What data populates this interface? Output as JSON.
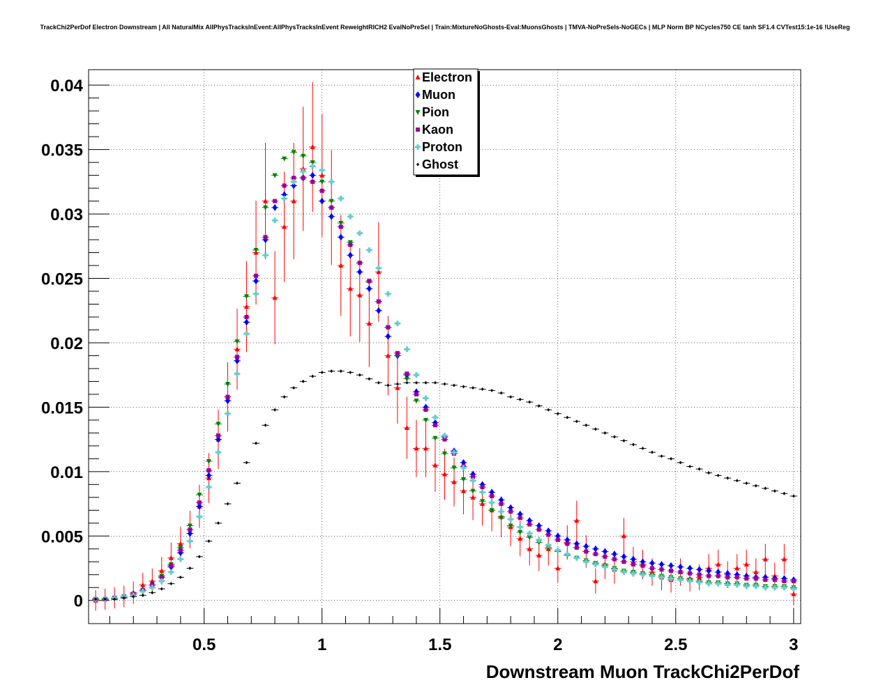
{
  "chart_data": {
    "type": "scatter",
    "title": "TrackChi2PerDof Electron Downstream | All NaturalMix AllPhysTracksInEvent:AllPhysTracksInEvent ReweightRICH2 EvalNoPreSel | Train:MixtureNoGhosts-Eval:MuonsGhosts | TMVA-NoPreSels-NoGECs | MLP Norm BP NCycles750 CE tanh SF1.4 CVTest15:1e-16 !UseReg",
    "xlabel": "Downstream Muon TrackChi2PerDof",
    "ylabel": "",
    "xlim": [
      0.01,
      3.03
    ],
    "ylim": [
      -0.0018,
      0.0412
    ],
    "grid": true,
    "legend_position": "top-center",
    "x_ticks": [
      "0.5",
      "1",
      "1.5",
      "2",
      "2.5",
      "3"
    ],
    "y_ticks": [
      "0",
      "0.005",
      "0.01",
      "0.015",
      "0.02",
      "0.025",
      "0.03",
      "0.035",
      "0.04"
    ],
    "x": [
      0.04,
      0.08,
      0.12,
      0.16,
      0.2,
      0.24,
      0.28,
      0.32,
      0.36,
      0.4,
      0.44,
      0.48,
      0.52,
      0.56,
      0.6,
      0.64,
      0.68,
      0.72,
      0.76,
      0.8,
      0.84,
      0.88,
      0.92,
      0.96,
      1.0,
      1.04,
      1.08,
      1.12,
      1.16,
      1.2,
      1.24,
      1.28,
      1.32,
      1.36,
      1.4,
      1.44,
      1.48,
      1.52,
      1.56,
      1.6,
      1.64,
      1.68,
      1.72,
      1.76,
      1.8,
      1.84,
      1.88,
      1.92,
      1.96,
      2.0,
      2.04,
      2.08,
      2.12,
      2.16,
      2.2,
      2.24,
      2.28,
      2.32,
      2.36,
      2.4,
      2.44,
      2.48,
      2.52,
      2.56,
      2.6,
      2.64,
      2.68,
      2.72,
      2.76,
      2.8,
      2.84,
      2.88,
      2.92,
      2.96,
      3.0
    ],
    "series": [
      {
        "name": "Electron",
        "marker": "triangle-up",
        "color": "#ff0000",
        "values": [
          0,
          0.0001,
          0.0002,
          0.0003,
          0.0006,
          0.0012,
          0.0015,
          0.0023,
          0.0033,
          0.0044,
          0.0055,
          0.0073,
          0.0095,
          0.0125,
          0.0158,
          0.0195,
          0.0228,
          0.027,
          0.031,
          0.0235,
          0.029,
          0.031,
          0.0335,
          0.0352,
          0.033,
          0.0305,
          0.026,
          0.0242,
          0.0237,
          0.0215,
          0.0255,
          0.019,
          0.0165,
          0.0134,
          0.0118,
          0.0118,
          0.0105,
          0.0098,
          0.0092,
          0.0085,
          0.008,
          0.0075,
          0.007,
          0.0065,
          0.0057,
          0.0048,
          0.004,
          0.0035,
          0.004,
          0.0025,
          0.0045,
          0.0062,
          0.0038,
          0.0015,
          0.0028,
          0.0024,
          0.005,
          0.003,
          0.0028,
          0.0022,
          0.0018,
          0.0016,
          0.0022,
          0.0017,
          0.0018,
          0.0025,
          0.0028,
          0.002,
          0.0025,
          0.0028,
          0.0022,
          0.0032,
          0.0019,
          0.0032,
          0.0005
        ]
      },
      {
        "name": "Muon",
        "marker": "diamond",
        "color": "#0000ff",
        "values": [
          0.0001,
          0.0001,
          0.0002,
          0.0003,
          0.0005,
          0.0008,
          0.0012,
          0.0018,
          0.0026,
          0.0037,
          0.0052,
          0.0073,
          0.0097,
          0.0125,
          0.0155,
          0.0186,
          0.0216,
          0.0248,
          0.028,
          0.0305,
          0.0315,
          0.0322,
          0.0328,
          0.033,
          0.031,
          0.0298,
          0.0282,
          0.0268,
          0.0255,
          0.0242,
          0.0225,
          0.0205,
          0.019,
          0.0175,
          0.0162,
          0.015,
          0.0138,
          0.0127,
          0.0116,
          0.0107,
          0.0098,
          0.009,
          0.0084,
          0.0078,
          0.0072,
          0.0067,
          0.0062,
          0.0058,
          0.0054,
          0.005,
          0.0047,
          0.0044,
          0.0042,
          0.004,
          0.0038,
          0.0036,
          0.0034,
          0.0032,
          0.003,
          0.0029,
          0.0028,
          0.0027,
          0.0026,
          0.0025,
          0.0024,
          0.0023,
          0.0022,
          0.0021,
          0.002,
          0.0019,
          0.0018,
          0.0018,
          0.0017,
          0.0017,
          0.0016
        ]
      },
      {
        "name": "Pion",
        "marker": "triangle-down",
        "color": "#008000",
        "values": [
          0.0001,
          0.0001,
          0.0002,
          0.0003,
          0.0005,
          0.0008,
          0.0012,
          0.0019,
          0.0028,
          0.0041,
          0.0058,
          0.0082,
          0.0108,
          0.0137,
          0.0168,
          0.0201,
          0.0236,
          0.0272,
          0.0305,
          0.033,
          0.0343,
          0.0348,
          0.0345,
          0.034,
          0.0325,
          0.031,
          0.0293,
          0.0278,
          0.0262,
          0.0247,
          0.0232,
          0.0212,
          0.019,
          0.0172,
          0.0155,
          0.014,
          0.0126,
          0.0114,
          0.0103,
          0.0094,
          0.0085,
          0.0077,
          0.007,
          0.0064,
          0.0058,
          0.0053,
          0.0049,
          0.0045,
          0.0041,
          0.0038,
          0.0035,
          0.0033,
          0.0031,
          0.0029,
          0.0027,
          0.0025,
          0.0023,
          0.0022,
          0.0021,
          0.002,
          0.0019,
          0.0018,
          0.0017,
          0.0016,
          0.0015,
          0.0014,
          0.0014,
          0.0013,
          0.0013,
          0.0012,
          0.0012,
          0.0011,
          0.0011,
          0.0011,
          0.001
        ]
      },
      {
        "name": "Kaon",
        "marker": "square",
        "color": "#990099",
        "values": [
          0.0001,
          0.0001,
          0.0002,
          0.0003,
          0.0005,
          0.0008,
          0.0012,
          0.0018,
          0.0027,
          0.0039,
          0.0055,
          0.0076,
          0.0101,
          0.0128,
          0.0158,
          0.0189,
          0.022,
          0.0252,
          0.0282,
          0.031,
          0.0322,
          0.0328,
          0.0328,
          0.0325,
          0.0318,
          0.0305,
          0.029,
          0.0276,
          0.0262,
          0.0248,
          0.0232,
          0.0212,
          0.0192,
          0.0176,
          0.016,
          0.0148,
          0.0136,
          0.0125,
          0.0114,
          0.0104,
          0.0096,
          0.0088,
          0.0081,
          0.0075,
          0.0069,
          0.0064,
          0.0059,
          0.0055,
          0.0051,
          0.0047,
          0.0044,
          0.0041,
          0.0038,
          0.0036,
          0.0034,
          0.0032,
          0.003,
          0.0028,
          0.0027,
          0.0025,
          0.0024,
          0.0023,
          0.0022,
          0.0021,
          0.002,
          0.0019,
          0.0019,
          0.0018,
          0.0018,
          0.0017,
          0.0017,
          0.0016,
          0.0016,
          0.0015,
          0.0015
        ]
      },
      {
        "name": "Proton",
        "marker": "cross",
        "color": "#66cccc",
        "values": [
          0.0001,
          0.0001,
          0.0002,
          0.0003,
          0.0004,
          0.0007,
          0.001,
          0.0015,
          0.0022,
          0.0032,
          0.0046,
          0.0065,
          0.0088,
          0.0115,
          0.0145,
          0.0176,
          0.0207,
          0.0238,
          0.0268,
          0.0295,
          0.0312,
          0.0325,
          0.0333,
          0.0337,
          0.0334,
          0.0325,
          0.0312,
          0.0298,
          0.0285,
          0.0272,
          0.0258,
          0.0238,
          0.0215,
          0.0195,
          0.0175,
          0.0157,
          0.0142,
          0.0128,
          0.0115,
          0.0103,
          0.0093,
          0.0084,
          0.0076,
          0.0069,
          0.0063,
          0.0057,
          0.0052,
          0.0047,
          0.0043,
          0.0039,
          0.0036,
          0.0033,
          0.003,
          0.0028,
          0.0026,
          0.0024,
          0.0022,
          0.0021,
          0.002,
          0.0019,
          0.0018,
          0.0017,
          0.0016,
          0.0015,
          0.0014,
          0.0013,
          0.0013,
          0.0012,
          0.0012,
          0.0011,
          0.0011,
          0.001,
          0.001,
          0.001,
          0.0009
        ]
      },
      {
        "name": "Ghost",
        "marker": "small-diamond",
        "color": "#000000",
        "values": [
          0.0001,
          0.0001,
          0.0001,
          0.0002,
          0.0003,
          0.0004,
          0.0006,
          0.0009,
          0.0013,
          0.0018,
          0.0025,
          0.0034,
          0.0046,
          0.006,
          0.0075,
          0.0091,
          0.0107,
          0.0122,
          0.0136,
          0.0148,
          0.0158,
          0.0165,
          0.017,
          0.0174,
          0.0177,
          0.0178,
          0.0178,
          0.0177,
          0.0175,
          0.0172,
          0.0169,
          0.0167,
          0.0168,
          0.0169,
          0.0169,
          0.0169,
          0.0169,
          0.0168,
          0.0167,
          0.0166,
          0.0165,
          0.0164,
          0.0163,
          0.0161,
          0.0158,
          0.0156,
          0.0154,
          0.0151,
          0.0148,
          0.0145,
          0.0142,
          0.0139,
          0.0136,
          0.0133,
          0.013,
          0.0127,
          0.0124,
          0.0121,
          0.0118,
          0.0115,
          0.0112,
          0.011,
          0.0107,
          0.0104,
          0.0102,
          0.0099,
          0.0097,
          0.0095,
          0.0093,
          0.0091,
          0.0089,
          0.0087,
          0.0085,
          0.0083,
          0.0081
        ]
      }
    ]
  }
}
